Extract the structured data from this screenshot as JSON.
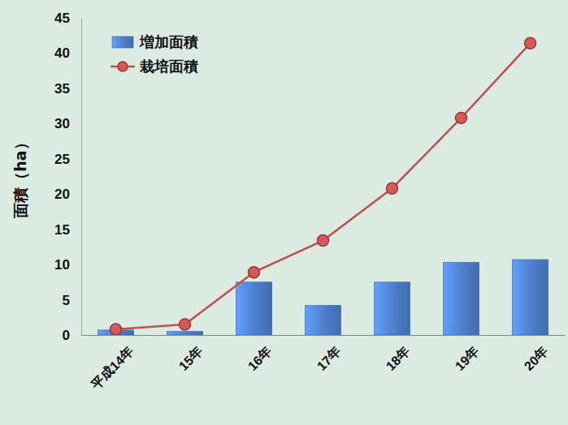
{
  "chart_data": {
    "type": "bar",
    "y_label": "面積（ha）",
    "categories": [
      "平成14年",
      "15年",
      "16年",
      "17年",
      "18年",
      "19年",
      "20年"
    ],
    "series": [
      {
        "name": "増加面積",
        "type": "bar",
        "color": "#4f81d0",
        "values": [
          0.7,
          0.5,
          7.5,
          4.2,
          7.5,
          10.3,
          10.7
        ]
      },
      {
        "name": "栽培面積",
        "type": "line",
        "color": "#c0504d",
        "marker": "circle",
        "values": [
          0.8,
          1.5,
          8.9,
          13.4,
          20.8,
          30.8,
          41.4
        ]
      }
    ],
    "ylim": [
      0,
      45
    ],
    "yticks": [
      0,
      5,
      10,
      15,
      20,
      25,
      30,
      35,
      40,
      45
    ],
    "grid": false,
    "legend": "upper left"
  }
}
